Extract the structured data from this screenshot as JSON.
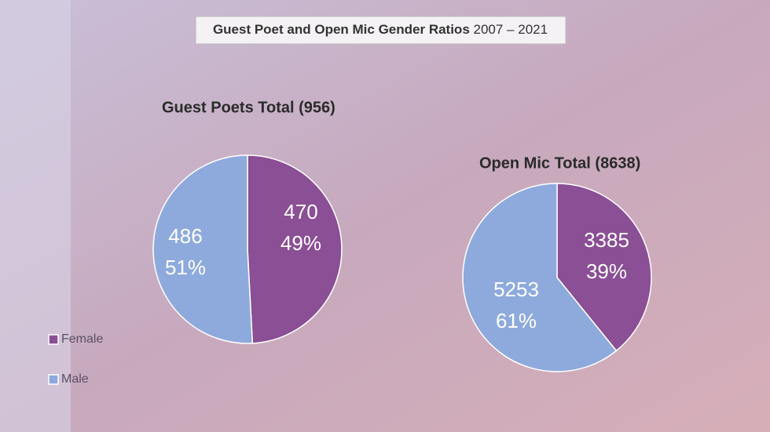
{
  "header": {
    "title": "Guest Poet and Open Mic Gender Ratios",
    "years": "2007 – 2021"
  },
  "legend": [
    "Female",
    "Male"
  ],
  "chart_data": [
    {
      "type": "pie",
      "title": "Guest Poets Total (956)",
      "categories": [
        "Female",
        "Male"
      ],
      "values": [
        470,
        486
      ],
      "percents": [
        49,
        51
      ],
      "percent_labels": [
        "49%",
        "51%"
      ],
      "colors": [
        "#8a4f94",
        "#8eaadd"
      ]
    },
    {
      "type": "pie",
      "title": "Open Mic Total (8638)",
      "categories": [
        "Female",
        "Male"
      ],
      "values": [
        3385,
        5253
      ],
      "percents": [
        39,
        61
      ],
      "percent_labels": [
        "39%",
        "61%"
      ],
      "colors": [
        "#8a4f94",
        "#8eaadd"
      ]
    }
  ]
}
